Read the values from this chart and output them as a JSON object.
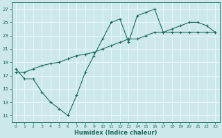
{
  "xlabel": "Humidex (Indice chaleur)",
  "xlim": [
    -0.5,
    23.5
  ],
  "ylim": [
    10,
    28
  ],
  "yticks": [
    11,
    13,
    15,
    17,
    19,
    21,
    23,
    25,
    27
  ],
  "xticks": [
    0,
    1,
    2,
    3,
    4,
    5,
    6,
    7,
    8,
    9,
    10,
    11,
    12,
    13,
    14,
    15,
    16,
    17,
    18,
    19,
    20,
    21,
    22,
    23
  ],
  "background_color": "#cce8e8",
  "line_color": "#1a6b5a",
  "grid_color": "#e8f8f8",
  "line1_x": [
    0,
    1,
    2,
    3,
    4,
    5,
    6,
    7,
    8,
    9,
    10,
    11,
    12,
    13,
    14,
    15,
    16,
    17,
    18,
    19,
    20,
    21,
    22,
    23
  ],
  "line1_y": [
    18.0,
    16.5,
    16.5,
    14.5,
    13.0,
    12.0,
    11.0,
    14.0,
    17.5,
    20.0,
    22.5,
    25.0,
    25.5,
    22.0,
    26.0,
    26.5,
    27.0,
    23.5,
    24.0,
    24.5,
    25.0,
    25.0,
    24.5,
    23.5
  ],
  "line2_x": [
    0,
    1,
    2,
    3,
    4,
    5,
    6,
    7,
    8,
    9,
    10,
    11,
    12,
    13,
    14,
    15,
    16,
    17,
    18,
    19,
    20,
    21,
    22,
    23
  ],
  "line2_y": [
    17.5,
    17.5,
    18.0,
    18.5,
    18.8,
    19.0,
    19.5,
    20.0,
    20.2,
    20.5,
    21.0,
    21.5,
    22.0,
    22.5,
    22.5,
    23.0,
    23.5,
    23.5,
    23.5,
    23.5,
    23.5,
    23.5,
    23.5,
    23.5
  ]
}
